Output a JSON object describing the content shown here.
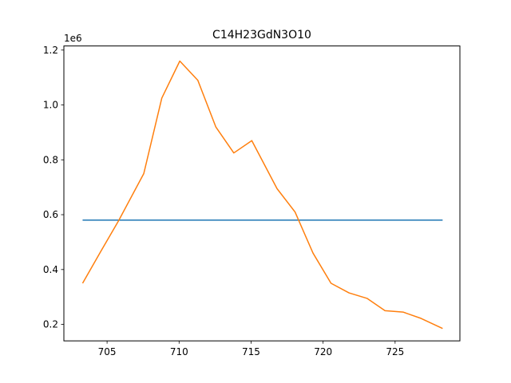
{
  "chart_data": {
    "type": "line",
    "title": "C14H23GdN3O10",
    "xlabel": "",
    "ylabel": "",
    "y_offset_label": "1e6",
    "xlim": [
      702.0,
      729.5
    ],
    "ylim": [
      0.14,
      1.215
    ],
    "x_ticks": [
      705,
      710,
      715,
      720,
      725
    ],
    "y_ticks": [
      0.2,
      0.4,
      0.6,
      0.8,
      1.0,
      1.2
    ],
    "y_tick_labels": [
      "0.2",
      "0.4",
      "0.6",
      "0.8",
      "1.0",
      "1.2"
    ],
    "grid": false,
    "legend": "none",
    "series": [
      {
        "color": "#1f77b4",
        "x": [
          703.3,
          728.3
        ],
        "y": [
          0.58,
          0.58
        ]
      },
      {
        "color": "#ff7f0e",
        "x": [
          703.3,
          704.55,
          705.8,
          707.55,
          708.8,
          710.05,
          711.3,
          712.55,
          713.8,
          715.05,
          716.8,
          718.05,
          719.3,
          720.55,
          721.8,
          723.05,
          724.3,
          725.55,
          726.8,
          728.3
        ],
        "y": [
          0.35,
          0.465,
          0.578,
          0.75,
          1.025,
          1.16,
          1.09,
          0.92,
          0.825,
          0.87,
          0.695,
          0.61,
          0.46,
          0.35,
          0.315,
          0.295,
          0.25,
          0.245,
          0.222,
          0.185
        ]
      }
    ]
  }
}
